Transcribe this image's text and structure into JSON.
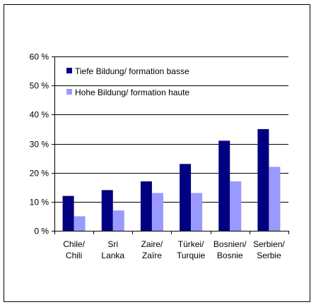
{
  "chart_data": {
    "type": "bar",
    "categories": [
      [
        "Chile/",
        "Chili"
      ],
      [
        "Sri",
        "Lanka"
      ],
      [
        "Zaire/",
        "Zaïre"
      ],
      [
        "Türkei/",
        "Turquie"
      ],
      [
        "Bosnien/",
        "Bosnie"
      ],
      [
        "Serbien/",
        "Serbie"
      ]
    ],
    "series": [
      {
        "name": "Tiefe Bildung/ formation basse",
        "color": "#000080",
        "values": [
          12,
          14,
          17,
          23,
          31,
          35
        ]
      },
      {
        "name": "Hohe Bildung/ formation haute",
        "color": "#9999ff",
        "values": [
          5,
          7,
          13,
          13,
          17,
          22
        ]
      }
    ],
    "ylim": [
      0,
      60
    ],
    "yticks": [
      0,
      10,
      20,
      30,
      40,
      50,
      60
    ],
    "ytick_suffix": " %",
    "grid": true,
    "legend_position": "top-left"
  }
}
